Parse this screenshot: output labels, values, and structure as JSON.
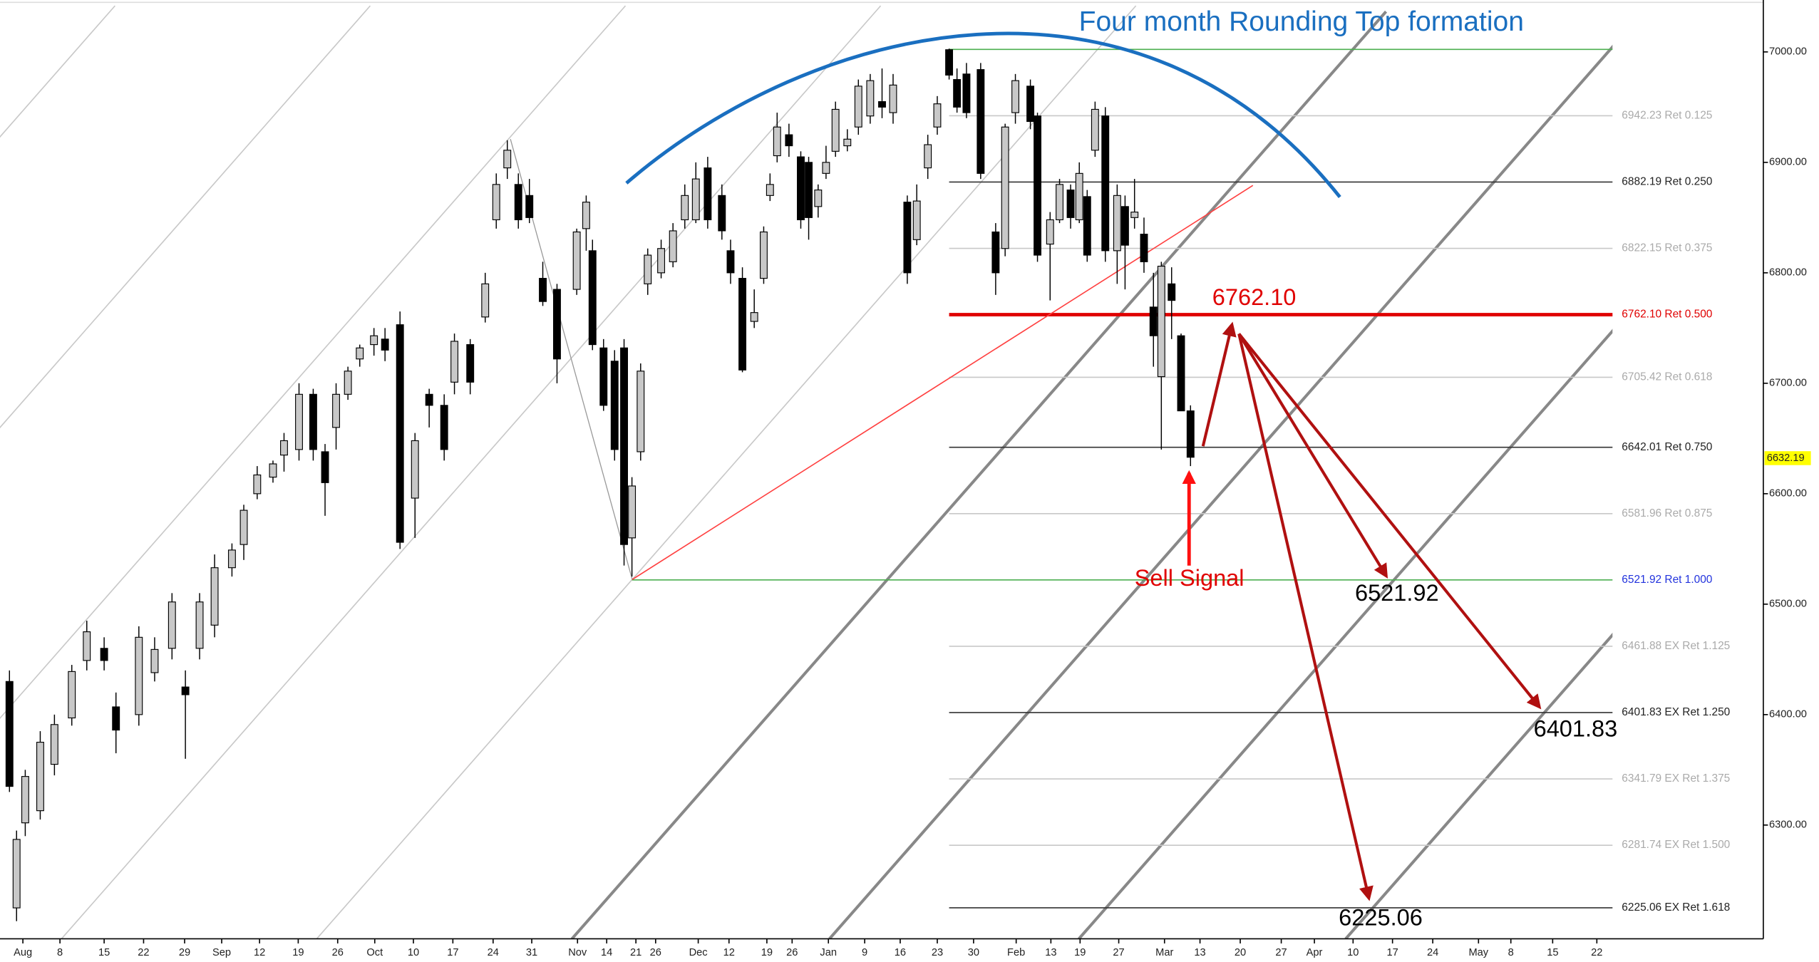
{
  "chart_data": {
    "type": "candlestick",
    "title": "Four month Rounding Top formation",
    "x": [
      1.2,
      2.1,
      3.2,
      5.1,
      6.9,
      9.1,
      11.0,
      13.2,
      14.7,
      17.6,
      19.6,
      21.8,
      23.5,
      25.3,
      27.2,
      29.4,
      30.9,
      32.6,
      34.6,
      36.0,
      37.9,
      39.7,
      41.2,
      42.6,
      44.1,
      45.6,
      47.4,
      48.8,
      50.7,
      52.6,
      54.4,
      56.3,
      57.6,
      59.6,
      61.5,
      62.9,
      64.3,
      65.7,
      67.1,
      68.8,
      70.6,
      73.1,
      74.3,
      75.1,
      76.5,
      77.9,
      79.1,
      80.1,
      81.2,
      82.1,
      83.8,
      85.3,
      86.8,
      88.2,
      89.7,
      91.5,
      92.6,
      94.1,
      95.6,
      96.8,
      97.6,
      98.5,
      100.0,
      101.5,
      102.5,
      103.7,
      104.7,
      105.9,
      107.4,
      108.8,
      110.3,
      111.8,
      113.2,
      115.0,
      116.2,
      117.6,
      118.8,
      120.3,
      121.3,
      122.5,
      124.3,
      126.2,
      127.4,
      128.7,
      130.6,
      131.5,
      133.1,
      134.3,
      135.7,
      136.8,
      137.8,
      138.8,
      140.1,
      141.6,
      142.6,
      143.8,
      145.0,
      146.2,
      147.2,
      148.5,
      149.7,
      150.9
    ],
    "open": [
      6430,
      6225,
      6302,
      6313,
      6355,
      6397,
      6449,
      6460,
      6407,
      6400,
      6438,
      6460,
      6425,
      6460,
      6481,
      6533,
      6554,
      6600,
      6615,
      6635,
      6640,
      6690,
      6638,
      6660,
      6690,
      6722,
      6735,
      6740,
      6753,
      6596,
      6690,
      6680,
      6701,
      6735,
      6760,
      6848,
      6895,
      6880,
      6870,
      6795,
      6785,
      6785,
      6840,
      6820,
      6732,
      6720,
      6732,
      6560,
      6638,
      6790,
      6800,
      6810,
      6848,
      6848,
      6895,
      6870,
      6820,
      6795,
      6756,
      6795,
      6870,
      6906,
      6925,
      6905,
      6900,
      6860,
      6890,
      6910,
      6915,
      6932,
      6942,
      6955,
      6945,
      6864,
      6830,
      6895,
      6932,
      7002,
      6975,
      6980,
      6984,
      6837,
      6822,
      6945,
      6969,
      6942,
      6826,
      6848,
      6875,
      6848,
      6869,
      6911,
      6942,
      6820,
      6860,
      6850,
      6835,
      6769,
      6706,
      6790,
      6743,
      6675
    ],
    "high": [
      6440,
      6295,
      6350,
      6385,
      6400,
      6445,
      6485,
      6470,
      6420,
      6480,
      6470,
      6510,
      6440,
      6510,
      6545,
      6555,
      6590,
      6625,
      6630,
      6655,
      6700,
      6695,
      6645,
      6700,
      6715,
      6735,
      6750,
      6750,
      6765,
      6655,
      6695,
      6690,
      6745,
      6740,
      6800,
      6890,
      6920,
      6890,
      6885,
      6810,
      6790,
      6840,
      6870,
      6830,
      6740,
      6730,
      6740,
      6615,
      6718,
      6822,
      6830,
      6845,
      6880,
      6900,
      6905,
      6880,
      6830,
      6805,
      6785,
      6842,
      6890,
      6945,
      6935,
      6910,
      6905,
      6880,
      6915,
      6955,
      6930,
      6975,
      6980,
      6985,
      6980,
      6870,
      6880,
      6925,
      6960,
      7003,
      6985,
      6990,
      6990,
      6845,
      6935,
      6980,
      6975,
      6945,
      6855,
      6885,
      6880,
      6900,
      6875,
      6955,
      6950,
      6880,
      6870,
      6885,
      6850,
      6800,
      6810,
      6805,
      6745,
      6680
    ],
    "low": [
      6330,
      6213,
      6290,
      6305,
      6345,
      6390,
      6440,
      6440,
      6365,
      6390,
      6430,
      6450,
      6360,
      6450,
      6470,
      6525,
      6540,
      6595,
      6610,
      6620,
      6630,
      6630,
      6580,
      6640,
      6685,
      6715,
      6725,
      6720,
      6550,
      6560,
      6660,
      6630,
      6690,
      6690,
      6755,
      6840,
      6885,
      6840,
      6845,
      6770,
      6700,
      6780,
      6820,
      6730,
      6675,
      6630,
      6535,
      6525,
      6630,
      6780,
      6795,
      6805,
      6840,
      6845,
      6840,
      6830,
      6790,
      6710,
      6750,
      6790,
      6865,
      6900,
      6905,
      6840,
      6830,
      6850,
      6885,
      6905,
      6910,
      6925,
      6935,
      6940,
      6935,
      6790,
      6825,
      6885,
      6925,
      6975,
      6945,
      6940,
      6885,
      6780,
      6815,
      6935,
      6930,
      6810,
      6775,
      6845,
      6840,
      6845,
      6810,
      6905,
      6810,
      6790,
      6785,
      6840,
      6800,
      6715,
      6640,
      6740,
      6675,
      6625
    ],
    "close": [
      6335,
      6287,
      6344,
      6375,
      6391,
      6439,
      6475,
      6449,
      6386,
      6470,
      6459,
      6502,
      6418,
      6502,
      6533,
      6549,
      6585,
      6617,
      6627,
      6648,
      6690,
      6640,
      6610,
      6690,
      6711,
      6732,
      6743,
      6730,
      6556,
      6648,
      6680,
      6640,
      6738,
      6701,
      6790,
      6880,
      6911,
      6848,
      6850,
      6774,
      6722,
      6837,
      6864,
      6735,
      6680,
      6640,
      6554,
      6607,
      6711,
      6816,
      6822,
      6838,
      6870,
      6885,
      6848,
      6838,
      6800,
      6712,
      6764,
      6837,
      6880,
      6932,
      6915,
      6848,
      6850,
      6875,
      6900,
      6948,
      6921,
      6969,
      6974,
      6950,
      6970,
      6800,
      6865,
      6916,
      6953,
      6979,
      6950,
      6945,
      6890,
      6800,
      6932,
      6974,
      6937,
      6816,
      6848,
      6880,
      6850,
      6890,
      6816,
      6948,
      6820,
      6870,
      6825,
      6855,
      6810,
      6743,
      6806,
      6775,
      6675,
      6633
    ],
    "up_color": "#c8c8c8",
    "down_color": "#000000",
    "xlim": [
      0,
      223.5
    ],
    "ylim": [
      6197,
      7047
    ],
    "xticks": [
      {
        "value": 2.9,
        "label": "Aug"
      },
      {
        "value": 7.6,
        "label": "8"
      },
      {
        "value": 13.2,
        "label": "15"
      },
      {
        "value": 18.2,
        "label": "22"
      },
      {
        "value": 23.4,
        "label": "29"
      },
      {
        "value": 28.1,
        "label": "Sep"
      },
      {
        "value": 32.9,
        "label": "12"
      },
      {
        "value": 37.8,
        "label": "19"
      },
      {
        "value": 42.8,
        "label": "26"
      },
      {
        "value": 47.5,
        "label": "Oct"
      },
      {
        "value": 52.4,
        "label": "10"
      },
      {
        "value": 57.4,
        "label": "17"
      },
      {
        "value": 62.5,
        "label": "24"
      },
      {
        "value": 67.4,
        "label": "31"
      },
      {
        "value": 73.2,
        "label": "Nov"
      },
      {
        "value": 76.9,
        "label": "14"
      },
      {
        "value": 80.6,
        "label": "21"
      },
      {
        "value": 83.1,
        "label": "26"
      },
      {
        "value": 88.5,
        "label": "Dec"
      },
      {
        "value": 92.4,
        "label": "12"
      },
      {
        "value": 97.2,
        "label": "19"
      },
      {
        "value": 100.4,
        "label": "26"
      },
      {
        "value": 105.0,
        "label": "Jan"
      },
      {
        "value": 109.6,
        "label": "9"
      },
      {
        "value": 114.1,
        "label": "16"
      },
      {
        "value": 118.8,
        "label": "23"
      },
      {
        "value": 123.4,
        "label": "30"
      },
      {
        "value": 128.8,
        "label": "Feb"
      },
      {
        "value": 133.2,
        "label": "13"
      },
      {
        "value": 136.9,
        "label": "19"
      },
      {
        "value": 141.8,
        "label": "27"
      },
      {
        "value": 147.6,
        "label": "Mar"
      },
      {
        "value": 152.1,
        "label": "13"
      },
      {
        "value": 157.2,
        "label": "20"
      },
      {
        "value": 162.4,
        "label": "27"
      },
      {
        "value": 166.6,
        "label": "Apr"
      },
      {
        "value": 171.5,
        "label": "10"
      },
      {
        "value": 176.5,
        "label": "17"
      },
      {
        "value": 181.6,
        "label": "24"
      },
      {
        "value": 187.4,
        "label": "May"
      },
      {
        "value": 191.5,
        "label": "8"
      },
      {
        "value": 196.8,
        "label": "15"
      },
      {
        "value": 202.4,
        "label": "22"
      }
    ],
    "yticks": [
      {
        "value": 6300,
        "label": "6300.00"
      },
      {
        "value": 6400,
        "label": "6400.00"
      },
      {
        "value": 6500,
        "label": "6500.00"
      },
      {
        "value": 6600,
        "label": "6600.00"
      },
      {
        "value": 6700,
        "label": "6700.00"
      },
      {
        "value": 6800,
        "label": "6800.00"
      },
      {
        "value": 6900,
        "label": "6900.00"
      },
      {
        "value": 7000,
        "label": "7000.00"
      }
    ],
    "levels": [
      {
        "value": 7002.28,
        "color": "#4caf50"
      },
      {
        "value": 6942.23,
        "label": "6942.23 Ret 0.125",
        "color": "#c8c8c8",
        "label_color": "#aaaaaa"
      },
      {
        "value": 6882.19,
        "label": "6882.19 Ret 0.250",
        "color": "#333333",
        "label_color": "#222222"
      },
      {
        "value": 6822.15,
        "label": "6822.15 Ret 0.375",
        "color": "#c8c8c8",
        "label_color": "#aaaaaa"
      },
      {
        "value": 6762.1,
        "label": "6762.10 Ret 0.500",
        "color": "#e00000",
        "label_color": "#e00000",
        "width": 3
      },
      {
        "value": 6705.42,
        "label": "6705.42 Ret 0.618",
        "color": "#c8c8c8",
        "label_color": "#aaaaaa"
      },
      {
        "value": 6642.01,
        "label": "6642.01 Ret 0.750",
        "color": "#333333",
        "label_color": "#222222"
      },
      {
        "value": 6581.96,
        "label": "6581.96 Ret 0.875",
        "color": "#c8c8c8",
        "label_color": "#aaaaaa"
      },
      {
        "value": 6521.92,
        "label": "6521.92 Ret 1.000",
        "color": "#4caf50",
        "label_color": "#2233dd",
        "from": "swing_low"
      },
      {
        "value": 6461.88,
        "label": "6461.88 EX Ret 1.125",
        "color": "#c8c8c8",
        "label_color": "#aaaaaa"
      },
      {
        "value": 6401.83,
        "label": "6401.83 EX Ret 1.250",
        "color": "#333333",
        "label_color": "#222222"
      },
      {
        "value": 6341.79,
        "label": "6341.79 EX Ret 1.375",
        "color": "#c8c8c8",
        "label_color": "#aaaaaa"
      },
      {
        "value": 6281.74,
        "label": "6281.74 EX Ret 1.500",
        "color": "#c8c8c8",
        "label_color": "#aaaaaa"
      },
      {
        "value": 6225.06,
        "label": "6225.06 EX Ret 1.618",
        "color": "#333333",
        "label_color": "#222222"
      }
    ],
    "annotations": [
      "6762.10",
      "Sell Signal",
      "6521.92",
      "6401.83",
      "6225.06"
    ],
    "last_price": 6632.19
  }
}
